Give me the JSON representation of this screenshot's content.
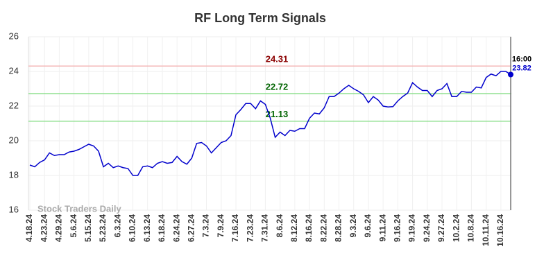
{
  "chart_data": {
    "type": "line",
    "title": "RF Long Term Signals",
    "categories": [
      "4.18.24",
      null,
      null,
      "4.23.24",
      null,
      null,
      "4.29.24",
      null,
      null,
      "5.6.24",
      null,
      null,
      "5.15.24",
      null,
      null,
      "5.23.24",
      null,
      null,
      "6.3.24",
      null,
      null,
      "6.10.24",
      null,
      null,
      "6.13.24",
      null,
      null,
      "6.18.24",
      null,
      null,
      "6.24.24",
      null,
      null,
      "6.27.24",
      null,
      null,
      "7.3.24",
      null,
      null,
      "7.9.24",
      null,
      null,
      "7.16.24",
      null,
      null,
      "7.23.24",
      null,
      null,
      "7.31.24",
      null,
      null,
      "8.6.24",
      null,
      null,
      "8.12.24",
      null,
      null,
      "8.16.24",
      null,
      null,
      "8.22.24",
      null,
      null,
      "8.28.24",
      null,
      null,
      "9.3.24",
      null,
      null,
      "9.6.24",
      null,
      null,
      "9.11.24",
      null,
      null,
      "9.16.24",
      null,
      null,
      "9.19.24",
      null,
      null,
      "9.24.24",
      null,
      null,
      "9.27.24",
      null,
      null,
      "10.2.24",
      null,
      null,
      "10.8.24",
      null,
      null,
      "10.11.24",
      null,
      null,
      "10.16.24",
      null,
      null
    ],
    "values": [
      18.6,
      18.5,
      18.75,
      18.9,
      19.3,
      19.15,
      19.2,
      19.2,
      19.35,
      19.4,
      19.5,
      19.65,
      19.8,
      19.7,
      19.4,
      18.5,
      18.7,
      18.45,
      18.55,
      18.45,
      18.4,
      18.0,
      18.0,
      18.5,
      18.55,
      18.45,
      18.7,
      18.8,
      18.7,
      18.75,
      19.1,
      18.8,
      18.65,
      19.0,
      19.85,
      19.9,
      19.7,
      19.3,
      19.6,
      19.9,
      20.0,
      20.3,
      21.5,
      21.8,
      22.15,
      22.15,
      21.85,
      22.3,
      22.1,
      21.3,
      20.2,
      20.5,
      20.3,
      20.6,
      20.55,
      20.7,
      20.7,
      21.3,
      21.6,
      21.55,
      21.9,
      22.55,
      22.55,
      22.75,
      23.0,
      23.2,
      23.0,
      22.85,
      22.65,
      22.2,
      22.55,
      22.35,
      22.0,
      21.95,
      21.97,
      22.3,
      22.55,
      22.75,
      23.35,
      23.1,
      22.9,
      22.9,
      22.55,
      22.9,
      23.0,
      23.3,
      22.55,
      22.55,
      22.85,
      22.8,
      22.8,
      23.1,
      23.05,
      23.65,
      23.85,
      23.75,
      24.0,
      24.0,
      23.82
    ],
    "color": "#0000cc",
    "ylim": [
      16,
      26
    ],
    "yticks": [
      16,
      18,
      20,
      22,
      24,
      26
    ],
    "grid": true,
    "hlines": [
      {
        "value": 24.31,
        "color": "#f4b6b6",
        "label_color": "#8b0000"
      },
      {
        "value": 22.72,
        "color": "#90e090",
        "label_color": "#006400"
      },
      {
        "value": 21.13,
        "color": "#90e090",
        "label_color": "#006400"
      }
    ],
    "last_time": "16:00",
    "watermark": "Stock Traders Daily"
  }
}
